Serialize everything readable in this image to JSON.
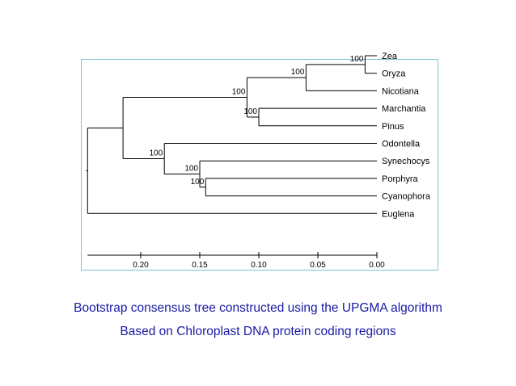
{
  "tree": {
    "root": {
      "height": 0.245,
      "children": [
        {
          "height": 0.215,
          "children": [
            {
              "height": 0.11,
              "bootstrap": "100",
              "children": [
                {
                  "height": 0.06,
                  "bootstrap": "100",
                  "children": [
                    {
                      "height": 0.01,
                      "bootstrap": "100",
                      "children": [
                        {
                          "name": "Zea"
                        },
                        {
                          "name": "Oryza"
                        }
                      ]
                    },
                    {
                      "name": "Nicotiana"
                    }
                  ]
                },
                {
                  "height": 0.1,
                  "bootstrap": "100",
                  "children": [
                    {
                      "name": "Marchantia"
                    },
                    {
                      "name": "Pinus"
                    }
                  ]
                }
              ]
            },
            {
              "height": 0.18,
              "bootstrap": "100",
              "children": [
                {
                  "name": "Odontella"
                },
                {
                  "height": 0.15,
                  "bootstrap": "100",
                  "children": [
                    {
                      "name": "Synechocys"
                    },
                    {
                      "height": 0.145,
                      "bootstrap": "100",
                      "children": [
                        {
                          "name": "Porphyra"
                        },
                        {
                          "name": "Cyanophora"
                        }
                      ]
                    }
                  ]
                }
              ]
            }
          ]
        },
        {
          "name": "Euglena"
        }
      ]
    }
  },
  "scale": {
    "ticks": [
      {
        "value": 0.2,
        "label": "0.20"
      },
      {
        "value": 0.15,
        "label": "0.15"
      },
      {
        "value": 0.1,
        "label": "0.10"
      },
      {
        "value": 0.05,
        "label": "0.05"
      },
      {
        "value": 0.0,
        "label": "0.00"
      }
    ],
    "axis_start": 0.245,
    "axis_end": 0.0
  },
  "captions": {
    "line1": "Bootstrap consensus tree constructed using the UPGMA algorithm",
    "line2": "Based on Chloroplast DNA protein coding regions"
  },
  "colors": {
    "frame": "#7fc4cc",
    "lines": "#000000",
    "caption": "#1a1aa6"
  }
}
